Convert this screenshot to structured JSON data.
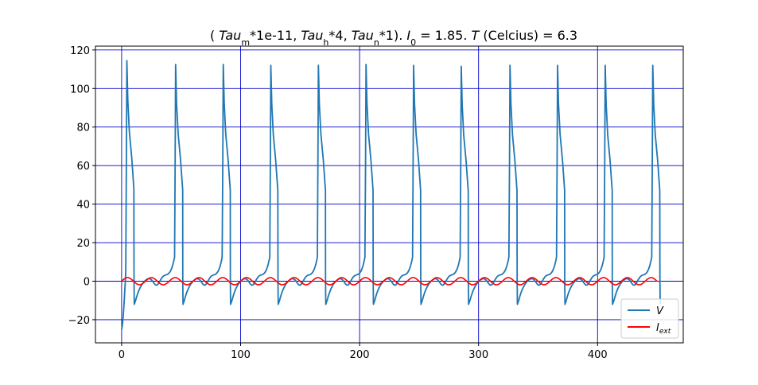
{
  "chart_data": {
    "type": "line",
    "title": {
      "parts": [
        "( ",
        "Tau",
        "m",
        "*1e-11, ",
        "Tau",
        "h",
        "*4, ",
        "Tau",
        "n",
        "*1). ",
        "I",
        "0",
        " = 1.85. ",
        "T",
        " (Celcius) = 6.3"
      ]
    },
    "xlim": [
      -22,
      472
    ],
    "ylim": [
      -32,
      122
    ],
    "xticks": [
      0,
      100,
      200,
      300,
      400
    ],
    "yticks": [
      -20,
      0,
      20,
      40,
      60,
      80,
      100,
      120
    ],
    "xtick_labels": [
      "0",
      "100",
      "200",
      "300",
      "400"
    ],
    "ytick_labels": [
      "−20",
      "0",
      "20",
      "40",
      "60",
      "80",
      "100",
      "120"
    ],
    "grid": true,
    "grid_color": "#0000cc",
    "legend_position": "lower-right",
    "series": [
      {
        "name": "V",
        "label_main": "V",
        "label_sub": "",
        "color": "#1f77b4",
        "spike_times": [
          4,
          45,
          85,
          125,
          165,
          205,
          245,
          285,
          326,
          366,
          406,
          446
        ],
        "spike_peaks": [
          114.5,
          112.5,
          112.5,
          112,
          112,
          112.5,
          112,
          111.5,
          112,
          112,
          112,
          112
        ],
        "start_value": -25,
        "reset_value": -12,
        "end_x": 450
      },
      {
        "name": "I_ext",
        "label_main": "I",
        "label_sub": "ext",
        "color": "#ff0000",
        "amplitude": 1.85,
        "period": 20,
        "x_range": [
          0,
          450
        ]
      }
    ]
  }
}
